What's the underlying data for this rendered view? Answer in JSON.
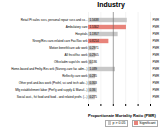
{
  "chart_data": {
    "type": "bar",
    "orientation": "horizontal",
    "title": "Industry",
    "xlabel": "Proportionate Mortality Ratio (PMR)",
    "categories": [
      "Retail Pt sales svcs, personal repair svcs and co...",
      "Ambulatory care",
      "Hospitals",
      "Nrsng/Res care-related care Fac/Soc wrk",
      "Motion benefit/care adv work",
      "All fncst/fisc work",
      "Offce/adm supv/clrc work",
      "Home-based and Fmlty-Res wrk (Nursng-care fac adm...)",
      "Reflectly care work",
      "Other prof-and-bus work (Profnl, sci and tech adv...)",
      "Mfg establishment labor (Perf'g and supply & Manuf...)",
      "Social asst., fst food and food - and related profn. (...)"
    ],
    "values": [
      1.5638,
      1.5302,
      1.1957,
      0.8214,
      0.2971,
      0.2905,
      0.186,
      1.089,
      0.285,
      0.303,
      0.36,
      0.275
    ],
    "colors": [
      "#c8c8c8",
      "#e8837a",
      "#c8c8c8",
      "#e8837a",
      "#c8c8c8",
      "#c8c8c8",
      "#c8c8c8",
      "#c8c8c8",
      "#c8c8c8",
      "#c8c8c8",
      "#c8c8c8",
      "#c8c8c8"
    ],
    "data_labels": true,
    "xlim": [
      0,
      2.5
    ],
    "xticks": [
      0,
      0.5,
      {
        "value": 1,
        "label": "1.0"
      },
      1.5,
      {
        "value": 2,
        "label": "2.0"
      },
      2.5
    ],
    "grid": true,
    "reference_line": 1,
    "right_labels": [
      "PMR",
      "PMR",
      "PMR",
      "PMR",
      "PMR",
      "PMR",
      "PMR",
      "PMR",
      "PMR",
      "PMR",
      "PMR",
      "PMR"
    ],
    "legend": "lower right",
    "legend_entries": [
      {
        "name": "p > 0.05",
        "color": "#c8c8c8"
      },
      {
        "name": "Significant",
        "color": "#e8837a"
      }
    ]
  }
}
